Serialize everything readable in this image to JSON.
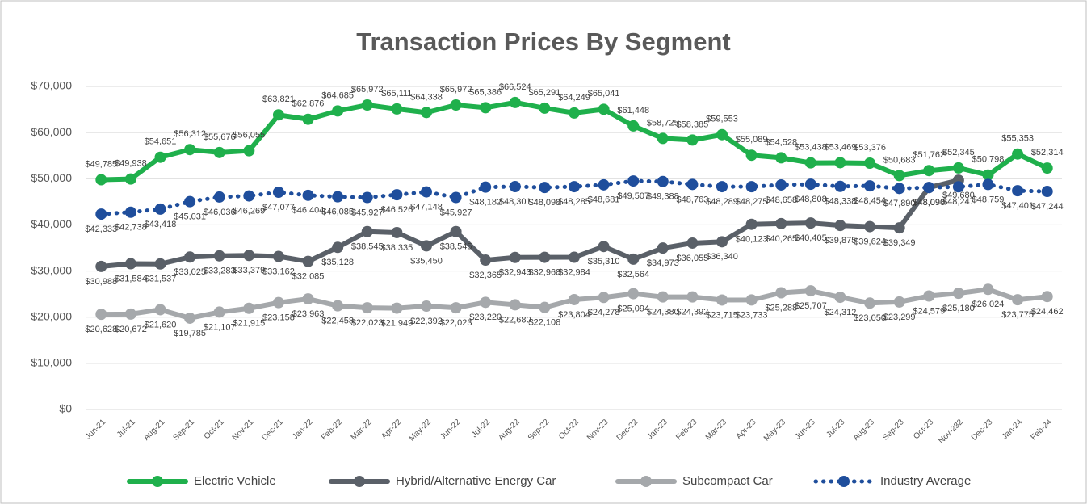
{
  "chart_data": {
    "type": "line",
    "title": "Transaction Prices By Segment",
    "categories": [
      "Jun-21",
      "Jul-21",
      "Aug-21",
      "Sep-21",
      "Oct-21",
      "Nov-21",
      "Dec-21",
      "Jan-22",
      "Feb-22",
      "Mar-22",
      "Apr-22",
      "May-22",
      "Jun-22",
      "Jul-22",
      "Aug-22",
      "Sep-22",
      "Oct-22",
      "Nov-23",
      "Dec-22",
      "Jan-23",
      "Feb-23",
      "Mar-23",
      "Apr-23",
      "May-23",
      "Jun-23",
      "Jul-23",
      "Aug-23",
      "Sep-23",
      "Oct-23",
      "Nov-232",
      "Dec-23",
      "Jan-24",
      "Feb-24"
    ],
    "ylim": [
      0,
      70000
    ],
    "yticks": [
      {
        "value": 0,
        "label": "$0"
      },
      {
        "value": 10000,
        "label": "$10,000"
      },
      {
        "value": 20000,
        "label": "$20,000"
      },
      {
        "value": 30000,
        "label": "$30,000"
      },
      {
        "value": 40000,
        "label": "$40,000"
      },
      {
        "value": 50000,
        "label": "$50,000"
      },
      {
        "value": 60000,
        "label": "$60,000"
      },
      {
        "value": 70000,
        "label": "$70,000"
      }
    ],
    "grid": true,
    "legend": "bottom",
    "series": [
      {
        "name": "Electric Vehicle",
        "color": "#1fb04c",
        "style": "solid",
        "label_side": "above",
        "values": [
          49785,
          49938,
          54651,
          56312,
          55676,
          56055,
          63821,
          62876,
          64685,
          65972,
          65111,
          64338,
          65972,
          65386,
          66524,
          65291,
          64249,
          65041,
          61448,
          58725,
          58385,
          59553,
          55089,
          54528,
          53438,
          53469,
          53376,
          50683,
          51762,
          52345,
          50798,
          55353,
          52314
        ],
        "value_labels": [
          "$49,785",
          "$49,938",
          "$54,651",
          "$56,312",
          "$55,676",
          "$56,055",
          "$63,821",
          "$62,876",
          "$64,685",
          "$65,972",
          "$65,111",
          "$64,338",
          "$65,972",
          "$65,386",
          "$66,524",
          "$65,291",
          "$64,249",
          "$65,041",
          "$61,448",
          "$58,725",
          "$58,385",
          "$59,553",
          "$55,089",
          "$54,528",
          "$53,438",
          "$53,469",
          "$53,376",
          "$50,683",
          "$51,762",
          "$52,345",
          "$50,798",
          "$55,353",
          "$52,314"
        ]
      },
      {
        "name": "Hybrid/Alternative Energy Car",
        "color": "#5a6068",
        "style": "solid",
        "label_side": "below",
        "values": [
          30988,
          31584,
          31537,
          33025,
          33283,
          33379,
          33162,
          32085,
          35128,
          38545,
          38335,
          35450,
          38545,
          32365,
          32943,
          32968,
          32984,
          35310,
          32564,
          34973,
          36055,
          36340,
          40123,
          40265,
          40405,
          39875,
          39624,
          39349,
          48090,
          49680,
          null,
          null,
          null
        ],
        "value_labels": [
          "$30,988",
          "$31,584",
          "$31,537",
          "$33,025",
          "$33,283",
          "$33,379",
          "$33,162",
          "$32,085",
          "$35,128",
          "$38,545",
          "$38,335",
          "$35,450",
          "$38,545",
          "$32,365",
          "$32,943",
          "$32,968",
          "$32,984",
          "$35,310",
          "$32,564",
          "$34,973",
          "$36,055",
          "$36,340",
          "$40,123",
          "$40,265",
          "$40,405",
          "$39,875",
          "$39,624",
          "$39,349",
          "$48,090",
          "$49,680",
          null,
          null,
          null
        ]
      },
      {
        "name": "Subcompact Car",
        "color": "#a5a8ab",
        "style": "solid",
        "label_side": "below",
        "values": [
          20628,
          20672,
          21620,
          19785,
          21107,
          21915,
          23158,
          23963,
          22458,
          22023,
          21949,
          22392,
          22023,
          23220,
          22680,
          22108,
          23804,
          24278,
          25094,
          24380,
          24392,
          23715,
          23733,
          25288,
          25707,
          24312,
          23050,
          23299,
          24579,
          25180,
          26024,
          23775,
          24462
        ],
        "value_labels": [
          "$20,628",
          "$20,672",
          "$21,620",
          "$19,785",
          "$21,107",
          "$21,915",
          "$23,158",
          "$23,963",
          "$22,458",
          "$22,023",
          "$21,949",
          "$22,392",
          "$22,023",
          "$23,220",
          "$22,680",
          "$22,108",
          "$23,804",
          "$24,278",
          "$25,094",
          "$24,380",
          "$24,392",
          "$23,715",
          "$23,733",
          "$25,288",
          "$25,707",
          "$24,312",
          "$23,050",
          "$23,299",
          "$24,579",
          "$25,180",
          "$26,024",
          "$23,775",
          "$24,462"
        ]
      },
      {
        "name": "Industry Average",
        "color": "#1f4e9c",
        "style": "dotted",
        "label_side": "below",
        "values": [
          42333,
          42738,
          43418,
          45031,
          46036,
          46269,
          47077,
          46404,
          46085,
          45927,
          46526,
          47148,
          45927,
          48182,
          48301,
          48098,
          48285,
          48681,
          49507,
          49388,
          48763,
          48289,
          48275,
          48658,
          48808,
          48338,
          48454,
          47890,
          48096,
          48247,
          48759,
          47401,
          47244
        ],
        "value_labels": [
          "$42,333",
          "$42,738",
          "$43,418",
          "$45,031",
          "$46,036",
          "$46,269",
          "$47,077",
          "$46,404",
          "$46,085",
          "$45,927",
          "$46,526",
          "$47,148",
          "$45,927",
          "$48,182",
          "$48,301",
          "$48,098",
          "$48,285",
          "$48,681",
          "$49,507",
          "$49,388",
          "$48,763",
          "$48,289",
          "$48,275",
          "$48,658",
          "$48,808",
          "$48,338",
          "$48,454",
          "$47,890",
          "$48,096",
          "$48,247",
          "$48,759",
          "$47,401",
          "$47,244"
        ]
      }
    ]
  }
}
